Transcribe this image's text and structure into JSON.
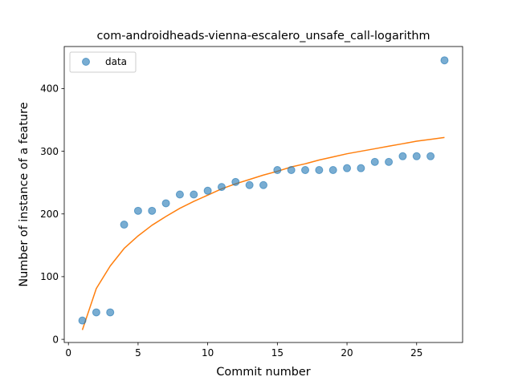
{
  "chart_data": {
    "type": "scatter",
    "title": "com-androidheads-vienna-escalero_unsafe_call-logarithm",
    "xlabel": "Commit number",
    "ylabel": "Number of instance of a feature",
    "xlim": [
      -0.3,
      28.3
    ],
    "ylim": [
      -5,
      467
    ],
    "xticks": [
      0,
      5,
      10,
      15,
      20,
      25
    ],
    "yticks": [
      0,
      100,
      200,
      300,
      400
    ],
    "grid": false,
    "legend": {
      "placement": "upper-left",
      "entries": [
        "data"
      ]
    },
    "series": [
      {
        "name": "data",
        "kind": "scatter",
        "color": "#1f77b4",
        "x": [
          1,
          2,
          3,
          4,
          5,
          6,
          7,
          8,
          9,
          10,
          11,
          12,
          13,
          14,
          15,
          16,
          17,
          18,
          19,
          20,
          21,
          22,
          23,
          24,
          25,
          26,
          27
        ],
        "y": [
          30,
          43,
          43,
          183,
          205,
          205,
          217,
          231,
          231,
          237,
          243,
          251,
          246,
          246,
          270,
          270,
          270,
          270,
          270,
          273,
          273,
          283,
          283,
          292,
          292,
          292,
          445
        ]
      },
      {
        "kind": "line",
        "color": "#ff7f0e",
        "x": [
          1,
          2,
          3,
          4,
          5,
          6,
          7,
          8,
          9,
          10,
          11,
          12,
          13,
          14,
          15,
          16,
          17,
          18,
          19,
          20,
          21,
          22,
          23,
          24,
          25,
          26,
          27
        ],
        "y": [
          15,
          81,
          117,
          145,
          165,
          182,
          196,
          209,
          220,
          230,
          240,
          248,
          255,
          262,
          268,
          275,
          280,
          286,
          291,
          296,
          300,
          304,
          308,
          312,
          316,
          319,
          322
        ]
      }
    ]
  }
}
